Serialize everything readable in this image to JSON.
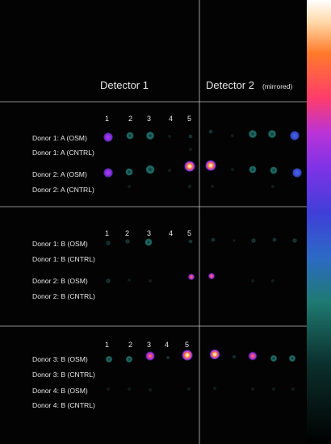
{
  "detectors": {
    "d1": "Detector 1",
    "d2_main": "Detector 2",
    "d2_sub": "(mirrored)"
  },
  "panels": [
    {
      "columns": [
        "1",
        "2",
        "3",
        "4",
        "5"
      ],
      "rows": [
        "Donor 1: A (OSM)",
        "Donor 1: A (CNTRL)",
        "Donor 2: A (OSM)",
        "Donor 2: A (CNTRL)"
      ]
    },
    {
      "columns": [
        "1",
        "2",
        "3",
        "4",
        "5"
      ],
      "rows": [
        "Donor 1: B (OSM)",
        "Donor 1: B (CNTRL)",
        "Donor 2: B (OSM)",
        "Donor 2: B (CNTRL)"
      ]
    },
    {
      "columns": [
        "1",
        "2",
        "3",
        "4",
        "5"
      ],
      "rows": [
        "Donor 3: B (OSM)",
        "Donor 3: B (CNTRL)",
        "Donor 4: B (OSM)",
        "Donor 4: B (CNTRL)"
      ]
    }
  ],
  "colors": {
    "background": "#030303",
    "divider": "#bfbfbf",
    "teal": "#1f6f6a",
    "violet": "#8a2be2",
    "hot": "#ff7a2a",
    "blue": "#3a4fd6"
  },
  "colorbar": "black-teal-blue-violet-magenta-orange-white"
}
